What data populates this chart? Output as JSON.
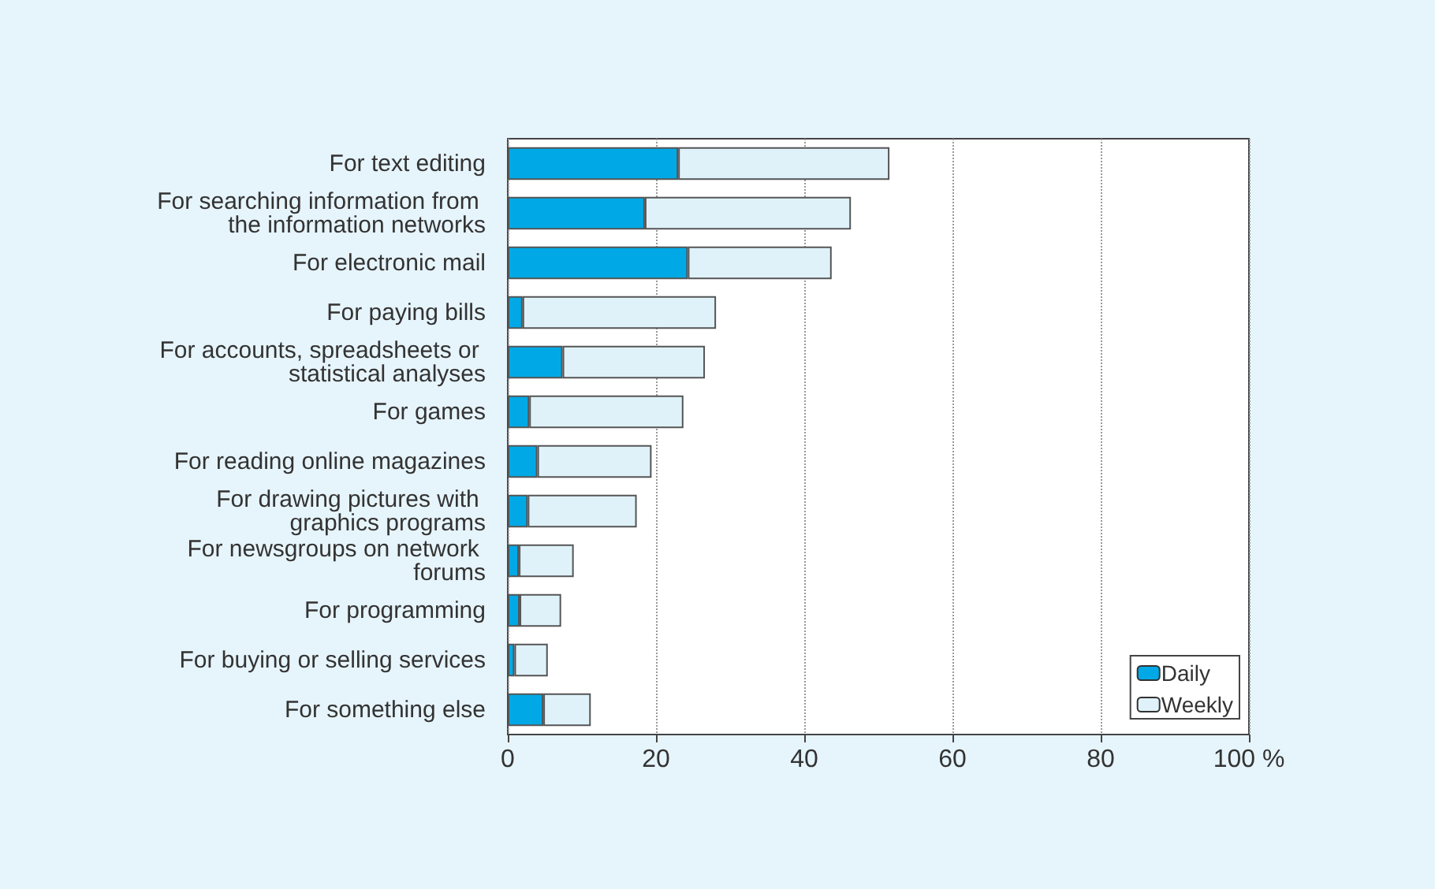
{
  "chart_data": {
    "type": "bar",
    "orientation": "horizontal",
    "stacked": true,
    "categories": [
      "For text editing",
      "For searching information from the information networks",
      "For electronic mail",
      "For paying bills",
      "For accounts, spreadsheets or statistical analyses",
      "For games",
      "For reading online magazines",
      "For drawing pictures with graphics programs",
      "For newsgroups on network forums",
      "For programming",
      "For buying or selling services",
      "For something else"
    ],
    "series": [
      {
        "name": "Daily",
        "color": "#00a9e6",
        "values": [
          23.0,
          18.5,
          24.3,
          2.0,
          7.4,
          2.9,
          4.0,
          2.7,
          1.5,
          1.6,
          0.9,
          4.8
        ]
      },
      {
        "name": "Weekly",
        "color": "#dff2fa",
        "values": [
          28.5,
          27.8,
          19.4,
          26.1,
          19.2,
          20.8,
          15.4,
          14.7,
          7.4,
          5.6,
          4.5,
          6.4
        ]
      }
    ],
    "xlim": [
      0,
      100
    ],
    "xticks": [
      0,
      20,
      40,
      60,
      80,
      {
        "value": 100,
        "label": "100 %"
      }
    ],
    "grid": "x",
    "legend": "bottom right"
  }
}
